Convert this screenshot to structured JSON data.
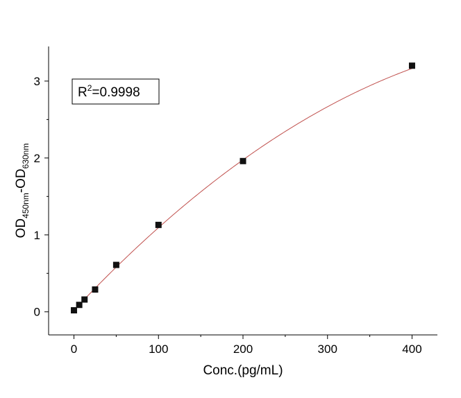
{
  "chart_data": {
    "type": "scatter",
    "title": "",
    "xlabel": "Conc.(pg/mL)",
    "ylabel": {
      "parts": [
        {
          "text": "OD",
          "sub": false
        },
        {
          "text": "450nm",
          "sub": true
        },
        {
          "text": "-OD",
          "sub": false
        },
        {
          "text": "630nm",
          "sub": true
        }
      ]
    },
    "xlim": [
      -30,
      430
    ],
    "ylim": [
      -0.3,
      3.45
    ],
    "xticks": [
      0,
      100,
      200,
      300,
      400
    ],
    "xtick_labels": [
      "0",
      "100",
      "200",
      "300",
      "400"
    ],
    "yticks": [
      0,
      1,
      2,
      3
    ],
    "ytick_labels": [
      "0",
      "1",
      "2",
      "3"
    ],
    "x_minor_step": 50,
    "y_minor_step": 0.5,
    "grid": false,
    "series": [
      {
        "points": [
          {
            "x": 0,
            "y": 0.02
          },
          {
            "x": 6.25,
            "y": 0.09
          },
          {
            "x": 12.5,
            "y": 0.16
          },
          {
            "x": 25,
            "y": 0.29
          },
          {
            "x": 50,
            "y": 0.61
          },
          {
            "x": 100,
            "y": 1.13
          },
          {
            "x": 200,
            "y": 1.96
          },
          {
            "x": 400,
            "y": 3.2
          }
        ],
        "marker_color": "#111111",
        "marker": "square"
      }
    ],
    "fit_curve": {
      "type": "quadratic",
      "color": "#c0504d",
      "coefficients": {
        "a": 0.02,
        "b": 0.0117,
        "c": -9.6e-06
      }
    },
    "annotation": {
      "parts": [
        {
          "text": "R",
          "sup": false
        },
        {
          "text": "2",
          "sup": true
        },
        {
          "text": "=0.9998",
          "sup": false
        }
      ],
      "placement": "top-left"
    }
  }
}
